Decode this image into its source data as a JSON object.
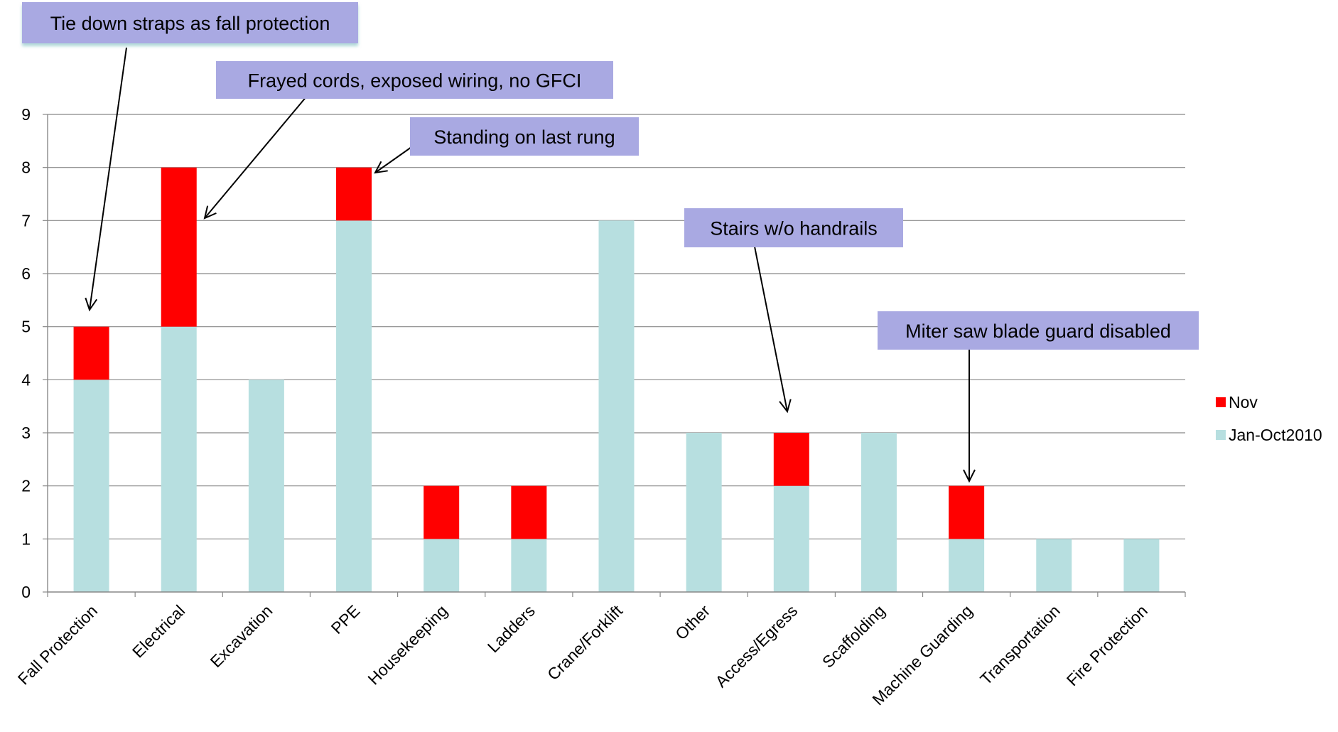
{
  "chart_data": {
    "type": "bar",
    "stacked": true,
    "categories": [
      "Fall Protection",
      "Electrical",
      "Excavation",
      "PPE",
      "Housekeeping",
      "Ladders",
      "Crane/Forklift",
      "Other",
      "Access/Egress",
      "Scaffolding",
      "Machine Guarding",
      "Transportation",
      "Fire Protection"
    ],
    "series": [
      {
        "name": "Jan-Oct2010",
        "color": "#b7dfe0",
        "values": [
          4,
          5,
          4,
          7,
          1,
          1,
          7,
          3,
          2,
          3,
          1,
          1,
          1
        ]
      },
      {
        "name": "Nov",
        "color": "#ff0000",
        "values": [
          1,
          3,
          0,
          1,
          1,
          1,
          0,
          0,
          1,
          0,
          1,
          0,
          0
        ]
      }
    ],
    "ylim": [
      0,
      9
    ],
    "yticks": [
      0,
      1,
      2,
      3,
      4,
      5,
      6,
      7,
      8,
      9
    ],
    "grid": true,
    "legend_position": "right",
    "legend_order": [
      "Nov",
      "Jan-Oct2010"
    ],
    "annotations": [
      {
        "text": "Tie down straps as fall protection",
        "category": "Fall Protection"
      },
      {
        "text": "Frayed cords, exposed wiring, no GFCI",
        "category": "Electrical"
      },
      {
        "text": "Standing on last rung",
        "category": "PPE"
      },
      {
        "text": "Stairs w/o handrails",
        "category": "Access/Egress"
      },
      {
        "text": "Miter saw blade guard disabled",
        "category": "Machine Guarding"
      }
    ],
    "annotation_box_color": "#a9a9e2",
    "grid_color": "#888888"
  }
}
